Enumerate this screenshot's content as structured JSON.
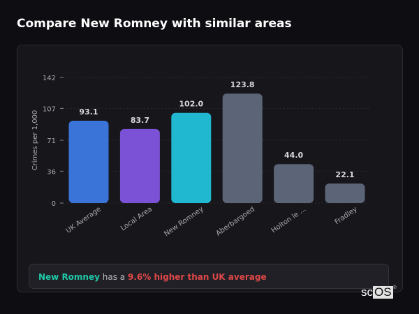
{
  "page": {
    "title": "Compare New Romney with similar areas"
  },
  "summary": {
    "area": "New Romney",
    "connector": "has a",
    "comparison": "9.6% higher than UK average"
  },
  "logo": {
    "text_a": "sc",
    "text_b": "OS",
    "mark": "®"
  },
  "chart_data": {
    "type": "bar",
    "title": "",
    "ylabel": "Crimes per 1,000",
    "xlabel": "",
    "ylim": [
      0,
      142
    ],
    "yticks": [
      0,
      36,
      71,
      107,
      142
    ],
    "grid": true,
    "categories": [
      "UK Average",
      "Local Area",
      "New Romney",
      "Aberbargoed",
      "Holton le ...",
      "Fradley"
    ],
    "values": [
      93.1,
      83.7,
      102.0,
      123.8,
      44.0,
      22.1
    ],
    "value_labels": [
      "93.1",
      "83.7",
      "102.0",
      "123.8",
      "44.0",
      "22.1"
    ],
    "colors": [
      "#3a74d8",
      "#7b52d6",
      "#20b8d0",
      "#5b6577",
      "#5b6577",
      "#5b6577"
    ]
  }
}
